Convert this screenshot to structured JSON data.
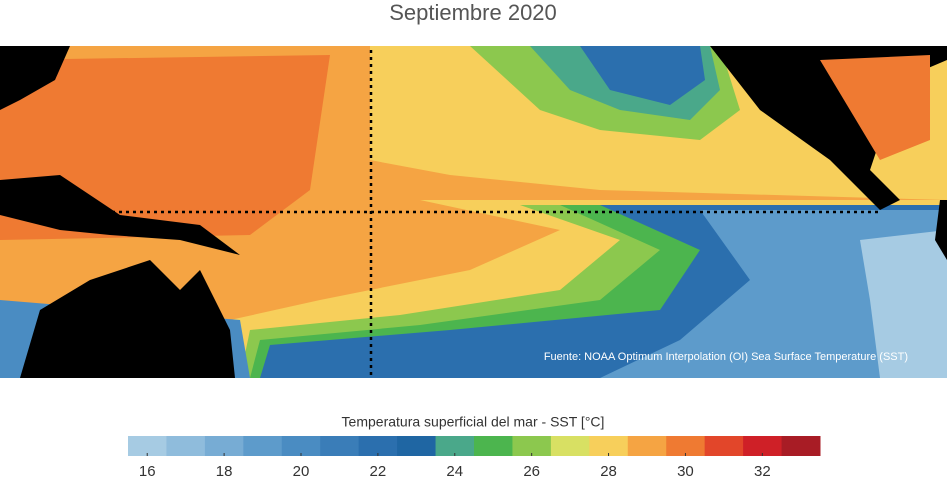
{
  "title": "Septiembre 2020",
  "source": "Fuente: NOAA Optimum Interpolation (OI) Sea Surface Temperature (SST)",
  "colorbar": {
    "label": "Temperatura superficial del mar - SST  [°C]",
    "bins": [
      15.5,
      16.5,
      17.5,
      18.5,
      19.5,
      20.5,
      21.5,
      22.5,
      23.5,
      24.5,
      25.5,
      26.5,
      27.5,
      28.5,
      29.5,
      30.5,
      31.5,
      32.5,
      33.5
    ],
    "colors": [
      "#a6cbe3",
      "#8fbcdc",
      "#77acd4",
      "#5d9bcb",
      "#4a8cc2",
      "#3a7db8",
      "#2b6fae",
      "#1f66a3",
      "#4aa88a",
      "#4cb54e",
      "#8cc84e",
      "#d8e063",
      "#f7cf5b",
      "#f5a443",
      "#ef7a32",
      "#e2462a",
      "#cf2027",
      "#a81c25"
    ],
    "ticks": [
      16,
      18,
      20,
      22,
      24,
      26,
      28,
      30,
      32
    ]
  }
}
